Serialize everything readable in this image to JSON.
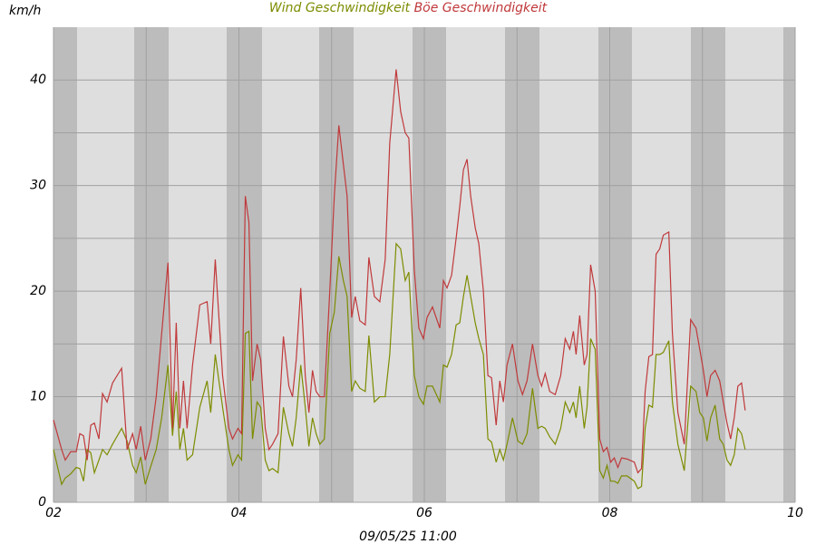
{
  "chart_data": {
    "type": "line",
    "y_label": "km/h",
    "footer": "09/05/25 11:00",
    "xlim": [
      2,
      10
    ],
    "ylim": [
      0,
      45
    ],
    "xticks": [
      {
        "value": 2,
        "label": "02"
      },
      {
        "value": 4,
        "label": "04"
      },
      {
        "value": 6,
        "label": "06"
      },
      {
        "value": 8,
        "label": "08"
      },
      {
        "value": 10,
        "label": "10"
      }
    ],
    "minor_xticks": [
      3,
      5,
      7,
      9
    ],
    "yticks": [
      0,
      10,
      20,
      30,
      40
    ],
    "minor_yticks": [
      5,
      15,
      25,
      35
    ],
    "grid": true,
    "x": [
      2,
      2.088,
      2.127,
      2.186,
      2.245,
      2.284,
      2.324,
      2.363,
      2.402,
      2.441,
      2.49,
      2.529,
      2.578,
      2.637,
      2.735,
      2.794,
      2.853,
      2.892,
      2.941,
      2.99,
      3.049,
      3.108,
      3.167,
      3.235,
      3.284,
      3.324,
      3.363,
      3.402,
      3.441,
      3.5,
      3.578,
      3.657,
      3.696,
      3.745,
      3.824,
      3.892,
      3.931,
      3.99,
      4.029,
      4.069,
      4.108,
      4.147,
      4.196,
      4.235,
      4.284,
      4.324,
      4.363,
      4.422,
      4.48,
      4.539,
      4.578,
      4.618,
      4.667,
      4.716,
      4.755,
      4.794,
      4.833,
      4.873,
      4.922,
      4.98,
      5.029,
      5.078,
      5.127,
      5.167,
      5.216,
      5.255,
      5.304,
      5.363,
      5.402,
      5.461,
      5.52,
      5.578,
      5.627,
      5.696,
      5.745,
      5.794,
      5.833,
      5.892,
      5.941,
      5.99,
      6.029,
      6.088,
      6.167,
      6.206,
      6.245,
      6.294,
      6.343,
      6.382,
      6.422,
      6.461,
      6.5,
      6.549,
      6.588,
      6.637,
      6.686,
      6.725,
      6.775,
      6.814,
      6.853,
      6.892,
      6.951,
      7.01,
      7.059,
      7.108,
      7.167,
      7.225,
      7.265,
      7.304,
      7.353,
      7.412,
      7.471,
      7.52,
      7.569,
      7.608,
      7.637,
      7.676,
      7.725,
      7.755,
      7.794,
      7.843,
      7.892,
      7.931,
      7.971,
      8.01,
      8.049,
      8.088,
      8.127,
      8.186,
      8.265,
      8.304,
      8.343,
      8.382,
      8.422,
      8.461,
      8.5,
      8.539,
      8.578,
      8.637,
      8.676,
      8.735,
      8.804,
      8.873,
      8.931,
      8.971,
      9.01,
      9.049,
      9.088,
      9.137,
      9.186,
      9.225,
      9.265,
      9.304,
      9.343,
      9.382,
      9.422,
      9.461
    ],
    "series": [
      {
        "name": "Wind Geschwindigkeit",
        "color": "#7d8c00",
        "values": [
          5,
          1.7,
          2.3,
          2.7,
          3.3,
          3.2,
          2,
          5,
          4.7,
          2.8,
          4,
          5,
          4.5,
          5.5,
          7,
          5.8,
          3.5,
          2.8,
          4.3,
          1.7,
          3.4,
          5,
          8,
          13,
          6.3,
          10.5,
          5,
          7,
          4,
          4.5,
          9,
          11.5,
          8.5,
          14,
          9,
          5,
          3.5,
          4.5,
          4,
          16,
          16.2,
          6,
          9.5,
          9,
          4,
          3,
          3.2,
          2.8,
          9,
          6.5,
          5.3,
          8,
          13,
          9,
          5.3,
          8,
          6.5,
          5.5,
          6,
          16,
          18,
          23.3,
          21,
          19.5,
          10.5,
          11.5,
          10.8,
          10.5,
          15.8,
          9.5,
          10,
          10,
          14,
          24.5,
          24,
          21,
          21.8,
          12,
          10,
          9.3,
          11,
          11,
          9.5,
          13,
          12.8,
          14,
          16.8,
          17,
          19.5,
          21.5,
          19.5,
          17,
          15.5,
          14,
          6,
          5.7,
          3.8,
          5,
          4,
          5.5,
          8,
          5.8,
          5.5,
          6.5,
          10.8,
          7,
          7.2,
          7,
          6.2,
          5.5,
          7,
          9.5,
          8.5,
          9.5,
          8,
          11,
          7,
          9,
          15.5,
          14.5,
          3,
          2.3,
          3.5,
          2,
          2,
          1.8,
          2.5,
          2.5,
          2,
          1.3,
          1.5,
          7,
          9.2,
          9,
          14,
          14,
          14.2,
          15.3,
          9.5,
          5.5,
          3,
          11,
          10.5,
          8.5,
          8,
          5.8,
          8,
          9.2,
          6,
          5.5,
          4,
          3.5,
          4.5,
          7,
          6.5,
          5
        ]
      },
      {
        "name": "Böe Geschwindigkeit",
        "color": "#c0393b",
        "values": [
          7.8,
          5,
          4,
          4.8,
          4.8,
          6.5,
          6.3,
          4,
          7.3,
          7.5,
          6,
          10.3,
          9.5,
          11.3,
          12.7,
          5,
          6.5,
          5,
          7.2,
          4,
          6,
          10,
          16,
          22.7,
          7,
          17,
          7,
          11.5,
          7,
          13,
          18.7,
          19,
          15,
          23,
          12,
          7,
          6,
          7,
          6.5,
          29,
          26.5,
          11.5,
          15,
          13.5,
          7,
          5,
          5.5,
          6.5,
          15.7,
          11,
          10,
          13.5,
          20.3,
          12,
          8.5,
          12.5,
          10.5,
          10,
          10,
          20,
          29,
          35.7,
          32,
          29,
          17.5,
          19.5,
          17.2,
          16.8,
          23.2,
          19.5,
          19,
          23,
          34,
          41,
          37,
          35,
          34.5,
          22,
          16.5,
          15.5,
          17.5,
          18.5,
          16.5,
          21,
          20.3,
          21.5,
          25,
          28,
          31.5,
          32.5,
          29,
          26,
          24.5,
          20,
          12,
          11.8,
          7.3,
          11.5,
          9.5,
          13,
          15,
          11.5,
          10.2,
          11.5,
          15,
          12,
          11,
          12.2,
          10.5,
          10.2,
          12,
          15.5,
          14.5,
          16.2,
          14,
          17.7,
          13,
          14,
          22.5,
          20,
          6,
          4.8,
          5.2,
          3.8,
          4.2,
          3.3,
          4.2,
          4.1,
          3.8,
          2.8,
          3.2,
          10.5,
          13.8,
          14,
          23.5,
          24,
          25.3,
          25.6,
          16,
          8.5,
          5.5,
          17.3,
          16.5,
          14.5,
          12.5,
          10,
          12,
          12.5,
          11.5,
          9.5,
          7.5,
          6,
          8,
          11,
          11.3,
          8.7
        ]
      }
    ]
  }
}
